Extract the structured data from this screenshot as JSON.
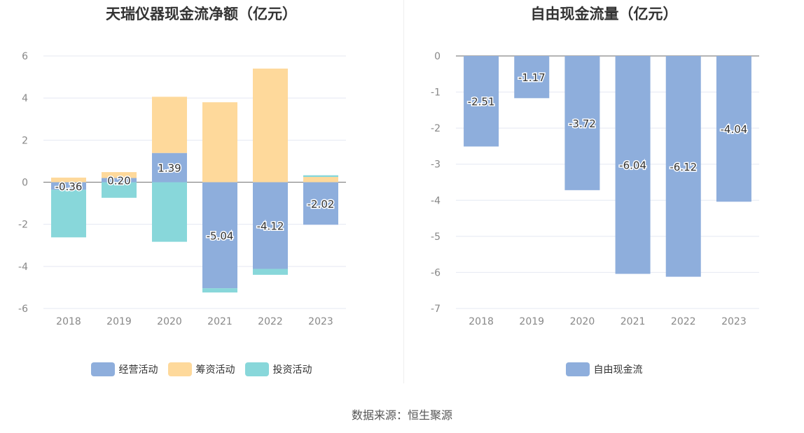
{
  "source_text": "数据来源：恒生聚源",
  "chart_data": [
    {
      "type": "bar",
      "stacked": true,
      "title": "天瑞仪器现金流净额（亿元）",
      "categories": [
        "2018",
        "2019",
        "2020",
        "2021",
        "2022",
        "2023"
      ],
      "ylim": [
        -6,
        6
      ],
      "yticks": [
        -6,
        -4,
        -2,
        0,
        2,
        4,
        6
      ],
      "grid": true,
      "legend_position": "bottom",
      "series": [
        {
          "name": "经营活动",
          "color": "#8eaedc",
          "values": [
            -0.36,
            0.2,
            1.39,
            -5.04,
            -4.12,
            -2.02
          ],
          "labels": [
            "-0.36",
            "0.20",
            "1.39",
            "-5.04",
            "-4.12",
            "-2.02"
          ]
        },
        {
          "name": "筹资活动",
          "color": "#fed99b",
          "values": [
            0.22,
            0.28,
            2.67,
            3.8,
            5.4,
            0.25
          ]
        },
        {
          "name": "投资活动",
          "color": "#88d7da",
          "values": [
            -2.26,
            -0.74,
            -2.83,
            -0.2,
            -0.28,
            0.08
          ]
        }
      ]
    },
    {
      "type": "bar",
      "title": "自由现金流量（亿元）",
      "categories": [
        "2018",
        "2019",
        "2020",
        "2021",
        "2022",
        "2023"
      ],
      "ylim": [
        -7,
        0
      ],
      "yticks": [
        -7,
        -6,
        -5,
        -4,
        -3,
        -2,
        -1,
        0
      ],
      "grid": true,
      "legend_position": "bottom",
      "series": [
        {
          "name": "自由现金流",
          "color": "#8eaedc",
          "values": [
            -2.51,
            -1.17,
            -3.72,
            -6.04,
            -6.12,
            -4.04
          ],
          "labels": [
            "-2.51",
            "-1.17",
            "-3.72",
            "-6.04",
            "-6.12",
            "-4.04"
          ]
        }
      ]
    }
  ]
}
